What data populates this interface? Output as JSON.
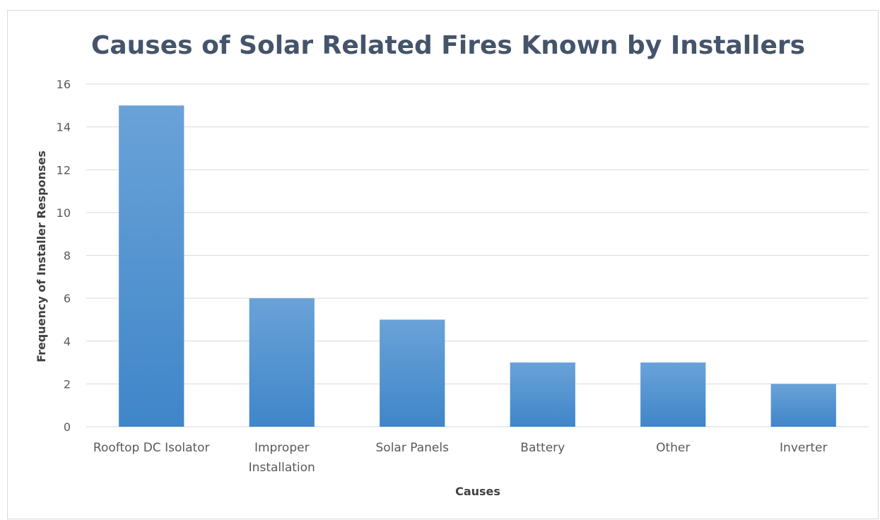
{
  "chart_data": {
    "type": "bar",
    "title": "Causes of Solar Related Fires Known by Installers",
    "xlabel": "Causes",
    "ylabel": "Frequency of Installer Responses",
    "categories": [
      [
        "Rooftop DC Isolator"
      ],
      [
        "Improper",
        "Installation"
      ],
      [
        "Solar Panels"
      ],
      [
        "Battery"
      ],
      [
        "Other"
      ],
      [
        "Inverter"
      ]
    ],
    "values": [
      15,
      6,
      5,
      3,
      3,
      2
    ],
    "ylim": [
      0,
      16
    ],
    "yticks": [
      "0",
      "2",
      "4",
      "6",
      "8",
      "10",
      "12",
      "14",
      "16"
    ],
    "grid": true,
    "legend": "none",
    "bar_color_top": "#6aa2d8",
    "bar_color_bottom": "#3f86c9",
    "grid_color": "#d9d9d9",
    "title_color": "#44546a"
  }
}
